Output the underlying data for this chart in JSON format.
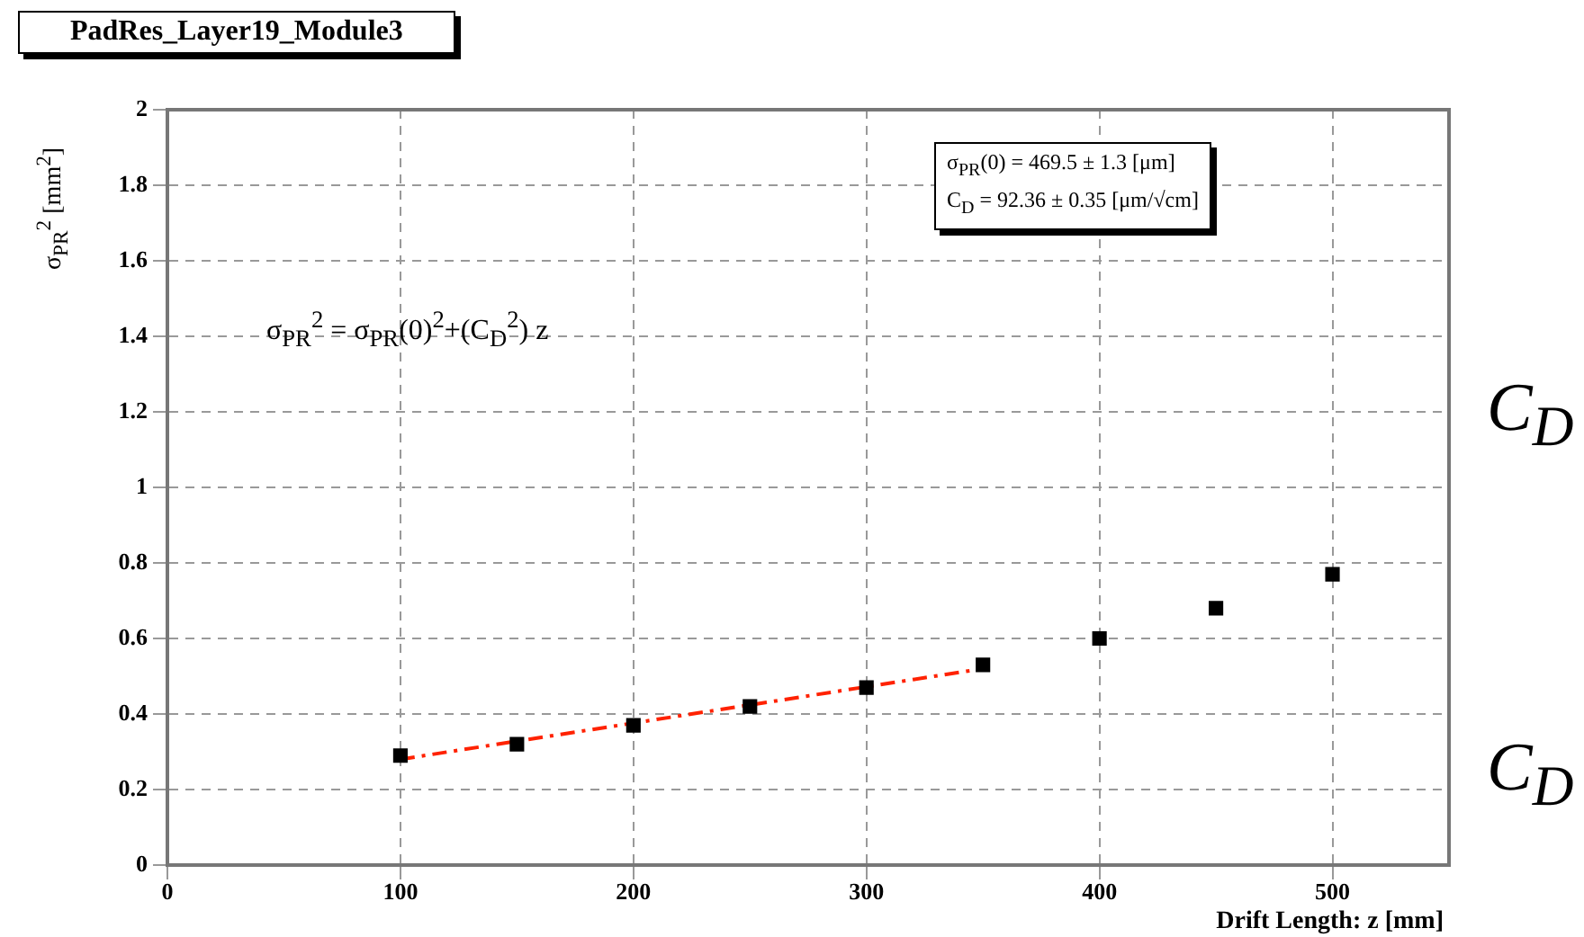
{
  "chart_data": {
    "type": "scatter",
    "title": "PadRes_Layer19_Module3",
    "xlabel": "Drift Length: z [mm]",
    "ylabel": "σ$_{PR}$$^{2}$ [mm$^{2}$]",
    "annotations": [
      "σ$_{PR}$(0) = 469.5 ± 1.3 [μm]",
      "C$_{D}$ = 92.36 ± 0.35 [μm/√cm]",
      "σ$_{PR}$$^{2}$ = σ$_{PR}$(0)$^{2}$+(C$_{D}$$^{2}$) z",
      "C$_{D}$",
      "C$_{D}$"
    ],
    "series": [
      {
        "type": "scatter",
        "color": "#000000",
        "marker": "square",
        "x": [
          100,
          150,
          200,
          250,
          300,
          350,
          400,
          450,
          500
        ],
        "values": [
          0.29,
          0.32,
          0.37,
          0.42,
          0.47,
          0.53,
          0.6,
          0.68,
          0.77
        ]
      },
      {
        "type": "line",
        "color": "#ff2200",
        "marker": "none",
        "line_style": "dashed",
        "x": [
          100,
          350
        ],
        "values": [
          0.28,
          0.52
        ]
      }
    ],
    "xlim": [
      0,
      550
    ],
    "xticks": [
      0,
      100,
      200,
      300,
      400,
      500
    ],
    "ylim": [
      0,
      2
    ],
    "yticks": [
      0,
      0.2,
      0.4,
      0.6,
      0.8,
      1,
      1.2,
      1.4,
      1.6,
      1.8,
      2
    ],
    "grid": true,
    "legend": false
  }
}
